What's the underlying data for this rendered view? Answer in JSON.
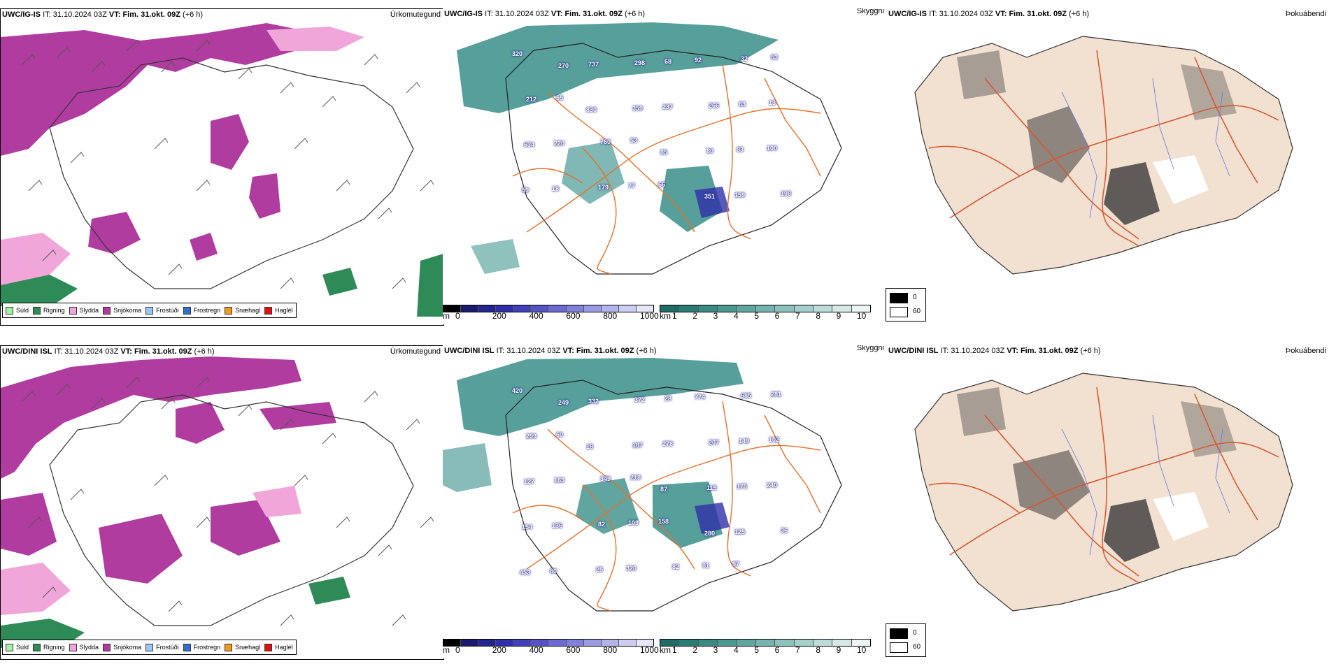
{
  "rows": [
    {
      "precip": {
        "model": "UWC/IG-IS",
        "it_label": "IT:",
        "it_value": "31.10.2024 03Z",
        "vt_label": "VT:",
        "vt_value": "Fim. 31.okt. 09Z",
        "lead": "(+6 h)",
        "title": "Úrkomutegund"
      },
      "cloud": {
        "model": "UWC/IG-IS",
        "it_label": "IT:",
        "it_value": "31.10.2024 03Z",
        "vt_label": "VT:",
        "vt_value": "Fim. 31.okt. 09Z",
        "lead": "(+6 h)",
        "title": "Skyggni",
        "peaks": [
          "320",
          "270",
          "737",
          "298",
          "68",
          "92",
          "32",
          "53",
          "212",
          "55",
          "830",
          "359",
          "237",
          "266",
          "63",
          "13",
          "634",
          "220",
          "760",
          "53",
          "85",
          "80",
          "83",
          "100",
          "59",
          "18",
          "179",
          "77",
          "66",
          "351",
          "159",
          "198"
        ]
      },
      "fog": {
        "model": "UWC/IG-IS",
        "it_label": "IT:",
        "it_value": "31.10.2024 03Z",
        "vt_label": "VT:",
        "vt_value": "Fim. 31.okt. 09Z",
        "lead": "(+6 h)",
        "title": "Þokuábendi"
      }
    },
    {
      "precip": {
        "model": "UWC/DINI ISL",
        "it_label": "IT:",
        "it_value": "31.10.2024 03Z",
        "vt_label": "VT:",
        "vt_value": "Fim. 31.okt. 09Z",
        "lead": "(+6 h)",
        "title": "Úrkomutegund"
      },
      "cloud": {
        "model": "UWC/DINI ISL",
        "it_label": "IT:",
        "it_value": "31.10.2024 03Z",
        "vt_label": "VT:",
        "vt_value": "Fim. 31.okt. 09Z",
        "lead": "(+6 h)",
        "title": "Skyggni",
        "peaks": [
          "420",
          "249",
          "332",
          "372",
          "28",
          "774",
          "685",
          "281",
          "299",
          "60",
          "18",
          "187",
          "278",
          "207",
          "149",
          "102",
          "127",
          "163",
          "349",
          "218",
          "87",
          "115",
          "175",
          "240",
          "154",
          "136",
          "82",
          "103",
          "158",
          "280",
          "125",
          "36",
          "453",
          "80",
          "25",
          "320",
          "82",
          "81",
          "97"
        ]
      },
      "fog": {
        "model": "UWC/DINI ISL",
        "it_label": "IT:",
        "it_value": "31.10.2024 03Z",
        "vt_label": "VT:",
        "vt_value": "Fim. 31.okt. 09Z",
        "lead": "(+6 h)",
        "title": "Þokuábendi"
      }
    }
  ],
  "precip_legend": [
    {
      "label": "Súld",
      "color": "#a6f0a6"
    },
    {
      "label": "Rigning",
      "color": "#2e8b57"
    },
    {
      "label": "Slydda",
      "color": "#f0a6d8"
    },
    {
      "label": "Snjókoma",
      "color": "#b03ca0"
    },
    {
      "label": "Frostúði",
      "color": "#9cc8f0"
    },
    {
      "label": "Frostregn",
      "color": "#2f6fcf"
    },
    {
      "label": "Snæhagl",
      "color": "#f09a1a"
    },
    {
      "label": "Haglél",
      "color": "#e01010"
    }
  ],
  "height_bar": {
    "unit": "m",
    "ticks": [
      "0",
      "200",
      "400",
      "600",
      "800",
      "1000"
    ],
    "colors": [
      "#000000",
      "#1a1a6e",
      "#24248f",
      "#2f2fa8",
      "#4040b8",
      "#5454c4",
      "#6a6ad0",
      "#8080da",
      "#9a9ae2",
      "#b4b4ea",
      "#cdcdf2",
      "#e6e6fa"
    ]
  },
  "vis_bar": {
    "unit": "km",
    "ticks": [
      "1",
      "2",
      "3",
      "4",
      "5",
      "6",
      "7",
      "8",
      "9",
      "10"
    ],
    "colors": [
      "#1f6b66",
      "#2a7b76",
      "#3a8985",
      "#4b9893",
      "#5fa6a1",
      "#75b3ae",
      "#8cc1bc",
      "#a4cfca",
      "#bddcd8",
      "#d6e9e6",
      "#eef6f5"
    ]
  },
  "fog_legend": {
    "items": [
      {
        "label": "0",
        "color": "#000000"
      },
      {
        "label": "60",
        "color": "#ffffff"
      }
    ]
  },
  "colors": {
    "snow": "#b03ca0",
    "rain": "#2e8b57",
    "sleet": "#f0a6d8",
    "road": "#e8702a",
    "teal": "#3a8e88",
    "land": "#f2e0d0",
    "fog_dark": "#3a3a3a"
  }
}
